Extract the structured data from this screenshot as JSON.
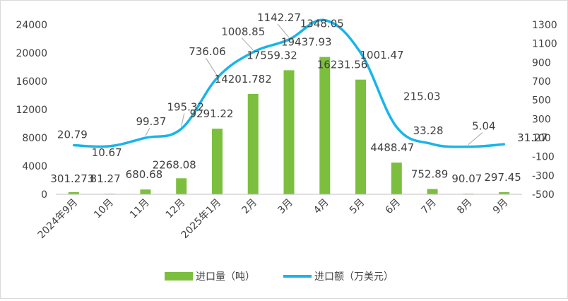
{
  "chart_data": {
    "type": "bar+line",
    "categories": [
      "2024年9月",
      "10月",
      "11月",
      "12月",
      "2025年1月",
      "2月",
      "3月",
      "4月",
      "5月",
      "6月",
      "7月",
      "8月",
      "9月"
    ],
    "series": [
      {
        "name": "进口量（吨）",
        "type": "bar",
        "axis": "left",
        "values": [
          301.273,
          81.27,
          680.68,
          2268.08,
          9291.22,
          14201.782,
          17559.32,
          19437.93,
          16231.56,
          4488.47,
          752.89,
          90.07,
          297.45
        ],
        "labels": [
          "301.273",
          "81.27",
          "680.68",
          "2268.08",
          "9291.22",
          "14201.782",
          "17559.32",
          "19437.93",
          "16231.56",
          "4488.47",
          "752.89",
          "90.07",
          "297.45"
        ],
        "color": "#7cbf3f"
      },
      {
        "name": "进口额（万美元）",
        "type": "line",
        "axis": "right",
        "values": [
          20.79,
          10.67,
          99.37,
          195.32,
          736.06,
          1008.85,
          1142.27,
          1348.05,
          1001.47,
          215.03,
          33.28,
          5.04,
          31.27
        ],
        "labels": [
          "20.79",
          "10.67",
          "99.37",
          "195.32",
          "736.06",
          "1008.85",
          "1142.27",
          "1348.05",
          "1001.47",
          "215.03",
          "33.28",
          "5.04",
          "31.27"
        ],
        "color": "#19b4ea"
      }
    ],
    "y_left": {
      "min": 0,
      "max": 24000,
      "ticks": [
        "0",
        "4000",
        "8000",
        "12000",
        "16000",
        "20000",
        "24000"
      ]
    },
    "y_right": {
      "min": -500,
      "max": 1300,
      "ticks": [
        "-500",
        "-300",
        "-100",
        "100",
        "300",
        "500",
        "700",
        "900",
        "1100",
        "1300"
      ]
    },
    "grid": false,
    "legend_position": "bottom"
  }
}
